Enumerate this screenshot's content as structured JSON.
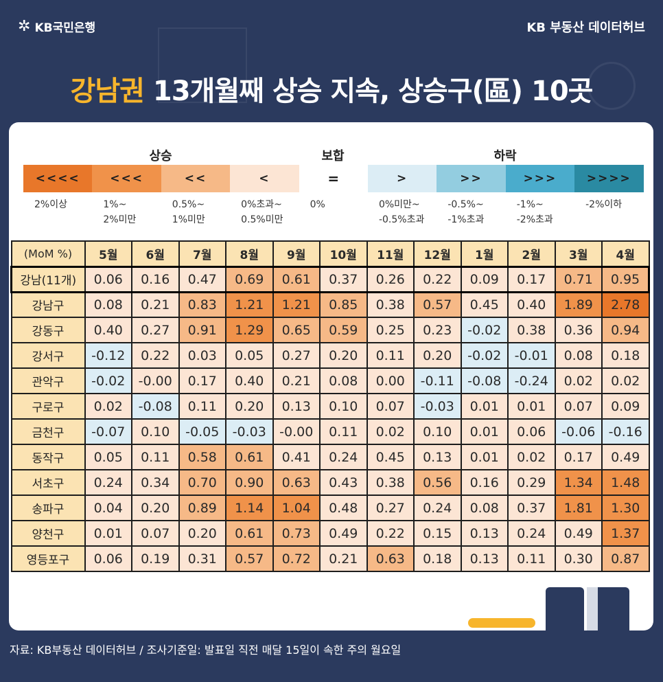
{
  "brand": {
    "logo_text": "KB국민은행",
    "right_text": "KB 부동산 데이터허브"
  },
  "headline": {
    "highlight": "강남권",
    "rest": " 13개월째 상승 지속, 상승구(區) 10곳"
  },
  "legend": {
    "headers": {
      "up": "상승",
      "flat": "보합",
      "down": "하락"
    },
    "items": [
      {
        "symbol": "<<<<",
        "label1": "2%이상",
        "label2": "",
        "color": "#e8772a"
      },
      {
        "symbol": "<<<",
        "label1": "1%~",
        "label2": "2%미만",
        "color": "#f0924a"
      },
      {
        "symbol": "<<",
        "label1": "0.5%~",
        "label2": "1%미만",
        "color": "#f6b987"
      },
      {
        "symbol": "<",
        "label1": "0%초과~",
        "label2": "0.5%미만",
        "color": "#fce5d4"
      },
      {
        "symbol": "=",
        "label1": "0%",
        "label2": "",
        "color": "#ffffff"
      },
      {
        "symbol": ">",
        "label1": "0%미만~",
        "label2": "-0.5%초과",
        "color": "#dcedf5"
      },
      {
        "symbol": ">>",
        "label1": "-0.5%~",
        "label2": "-1%초과",
        "color": "#93cde0"
      },
      {
        "symbol": ">>>",
        "label1": "-1%~",
        "label2": "-2%초과",
        "color": "#4aaccc"
      },
      {
        "symbol": ">>>>",
        "label1": "-2%이하",
        "label2": "",
        "color": "#2a8aa2"
      }
    ]
  },
  "chart_data": {
    "type": "heatmap",
    "corner_label": "(MoM %)",
    "columns": [
      "5월",
      "6월",
      "7월",
      "8월",
      "9월",
      "10월",
      "11월",
      "12월",
      "1월",
      "2월",
      "3월",
      "4월"
    ],
    "rows": [
      {
        "name": "강남(11개)",
        "values": [
          0.06,
          0.16,
          0.47,
          0.69,
          0.61,
          0.37,
          0.26,
          0.22,
          0.09,
          0.17,
          0.71,
          0.95
        ]
      },
      {
        "name": "강남구",
        "values": [
          0.08,
          0.21,
          0.83,
          1.21,
          1.21,
          0.85,
          0.38,
          0.57,
          0.45,
          0.4,
          1.89,
          2.78
        ]
      },
      {
        "name": "강동구",
        "values": [
          0.4,
          0.27,
          0.91,
          1.29,
          0.65,
          0.59,
          0.25,
          0.23,
          -0.02,
          0.38,
          0.36,
          0.94
        ]
      },
      {
        "name": "강서구",
        "values": [
          -0.12,
          0.22,
          0.03,
          0.05,
          0.27,
          0.2,
          0.11,
          0.2,
          -0.02,
          -0.01,
          0.08,
          0.18
        ]
      },
      {
        "name": "관악구",
        "values": [
          -0.02,
          -0.0,
          0.17,
          0.4,
          0.21,
          0.08,
          0.0,
          -0.11,
          -0.08,
          -0.24,
          0.02,
          0.02
        ]
      },
      {
        "name": "구로구",
        "values": [
          0.02,
          -0.08,
          0.11,
          0.2,
          0.13,
          0.1,
          0.07,
          -0.03,
          0.01,
          0.01,
          0.07,
          0.09
        ]
      },
      {
        "name": "금천구",
        "values": [
          -0.07,
          0.1,
          -0.05,
          -0.03,
          -0.0,
          0.11,
          0.02,
          0.1,
          0.01,
          0.06,
          -0.06,
          -0.16
        ]
      },
      {
        "name": "동작구",
        "values": [
          0.05,
          0.11,
          0.58,
          0.61,
          0.41,
          0.24,
          0.45,
          0.13,
          0.01,
          0.02,
          0.17,
          0.49
        ]
      },
      {
        "name": "서초구",
        "values": [
          0.24,
          0.34,
          0.7,
          0.9,
          0.63,
          0.43,
          0.38,
          0.56,
          0.16,
          0.29,
          1.34,
          1.48
        ]
      },
      {
        "name": "송파구",
        "values": [
          0.04,
          0.2,
          0.89,
          1.14,
          1.04,
          0.48,
          0.27,
          0.24,
          0.08,
          0.37,
          1.81,
          1.3
        ]
      },
      {
        "name": "양천구",
        "values": [
          0.01,
          0.07,
          0.2,
          0.61,
          0.73,
          0.49,
          0.22,
          0.15,
          0.13,
          0.24,
          0.49,
          1.37
        ]
      },
      {
        "name": "영등포구",
        "values": [
          0.06,
          0.19,
          0.31,
          0.57,
          0.72,
          0.21,
          0.63,
          0.18,
          0.13,
          0.11,
          0.3,
          0.87
        ]
      }
    ],
    "value_labels": [
      [
        "0.06",
        "0.16",
        "0.47",
        "0.69",
        "0.61",
        "0.37",
        "0.26",
        "0.22",
        "0.09",
        "0.17",
        "0.71",
        "0.95"
      ],
      [
        "0.08",
        "0.21",
        "0.83",
        "1.21",
        "1.21",
        "0.85",
        "0.38",
        "0.57",
        "0.45",
        "0.40",
        "1.89",
        "2.78"
      ],
      [
        "0.40",
        "0.27",
        "0.91",
        "1.29",
        "0.65",
        "0.59",
        "0.25",
        "0.23",
        "-0.02",
        "0.38",
        "0.36",
        "0.94"
      ],
      [
        "-0.12",
        "0.22",
        "0.03",
        "0.05",
        "0.27",
        "0.20",
        "0.11",
        "0.20",
        "-0.02",
        "-0.01",
        "0.08",
        "0.18"
      ],
      [
        "-0.02",
        "-0.00",
        "0.17",
        "0.40",
        "0.21",
        "0.08",
        "0.00",
        "-0.11",
        "-0.08",
        "-0.24",
        "0.02",
        "0.02"
      ],
      [
        "0.02",
        "-0.08",
        "0.11",
        "0.20",
        "0.13",
        "0.10",
        "0.07",
        "-0.03",
        "0.01",
        "0.01",
        "0.07",
        "0.09"
      ],
      [
        "-0.07",
        "0.10",
        "-0.05",
        "-0.03",
        "-0.00",
        "0.11",
        "0.02",
        "0.10",
        "0.01",
        "0.06",
        "-0.06",
        "-0.16"
      ],
      [
        "0.05",
        "0.11",
        "0.58",
        "0.61",
        "0.41",
        "0.24",
        "0.45",
        "0.13",
        "0.01",
        "0.02",
        "0.17",
        "0.49"
      ],
      [
        "0.24",
        "0.34",
        "0.70",
        "0.90",
        "0.63",
        "0.43",
        "0.38",
        "0.56",
        "0.16",
        "0.29",
        "1.34",
        "1.48"
      ],
      [
        "0.04",
        "0.20",
        "0.89",
        "1.14",
        "1.04",
        "0.48",
        "0.27",
        "0.24",
        "0.08",
        "0.37",
        "1.81",
        "1.30"
      ],
      [
        "0.01",
        "0.07",
        "0.20",
        "0.61",
        "0.73",
        "0.49",
        "0.22",
        "0.15",
        "0.13",
        "0.24",
        "0.49",
        "1.37"
      ],
      [
        "0.06",
        "0.19",
        "0.31",
        "0.57",
        "0.72",
        "0.21",
        "0.63",
        "0.18",
        "0.13",
        "0.11",
        "0.30",
        "0.87"
      ]
    ],
    "highlighted_row": "강남(11개)",
    "colors": {
      "up_4": "#e8772a",
      "up_3": "#f0924a",
      "up_2": "#f6b987",
      "up_1": "#fce5d4",
      "zero": "#fce5d4",
      "down_1": "#dcedf5",
      "down_2": "#93cde0",
      "header_bg": "#fbe3b3"
    }
  },
  "footer": {
    "source": "자료: KB부동산 데이터허브 / 조사기준일: 발표일 직전 매달 15일이 속한 주의 월요일"
  }
}
